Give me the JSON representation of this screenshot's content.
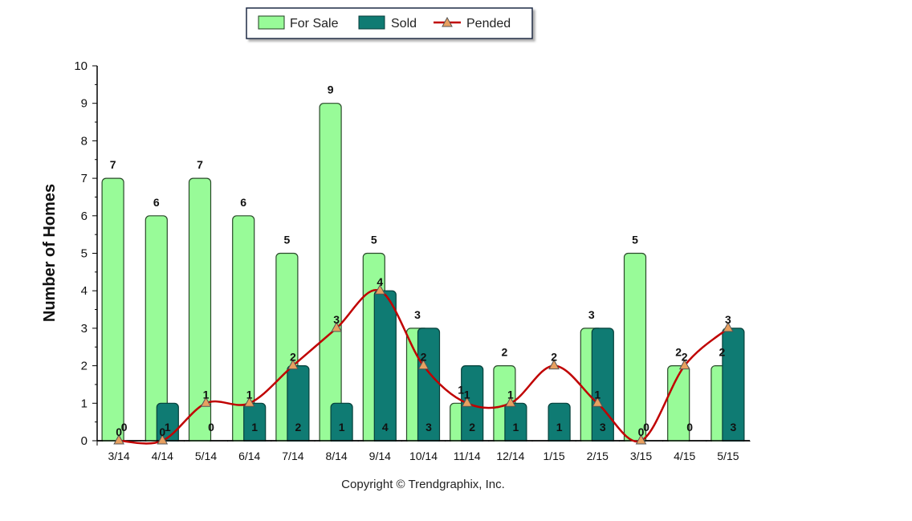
{
  "chart_data": {
    "type": "bar",
    "title": "",
    "ylabel": "Number of Homes",
    "xlabel": "",
    "ylim": [
      0,
      10
    ],
    "yticks": [
      0,
      1,
      2,
      3,
      4,
      5,
      6,
      7,
      8,
      9,
      10
    ],
    "grid": false,
    "legend_position": "top-center",
    "categories": [
      "3/14",
      "4/14",
      "5/14",
      "6/14",
      "7/14",
      "8/14",
      "9/14",
      "10/14",
      "11/14",
      "12/14",
      "1/15",
      "2/15",
      "3/15",
      "4/15",
      "5/15"
    ],
    "series": [
      {
        "name": "For Sale",
        "kind": "bar",
        "color": "#98fb98",
        "values": [
          7,
          6,
          7,
          6,
          5,
          9,
          5,
          3,
          1,
          2,
          0,
          3,
          5,
          2,
          2
        ]
      },
      {
        "name": "Sold",
        "kind": "bar",
        "color": "#0f7b73",
        "values": [
          0,
          1,
          0,
          1,
          2,
          1,
          4,
          3,
          2,
          1,
          1,
          3,
          0,
          0,
          3
        ]
      },
      {
        "name": "Pended",
        "kind": "line",
        "color": "#c00000",
        "marker_color": "#e8a060",
        "values": [
          0,
          0,
          1,
          1,
          2,
          3,
          4,
          2,
          1,
          1,
          2,
          1,
          0,
          2,
          3
        ]
      }
    ],
    "footer": "Copyright © Trendgraphix, Inc."
  }
}
